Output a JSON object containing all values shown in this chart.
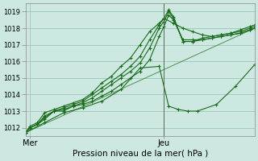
{
  "xlabel": "Pression niveau de la mer( hPa )",
  "background_color": "#cce8e0",
  "grid_color": "#90c0b0",
  "line_color": "#1a6b1a",
  "marker": "+",
  "ylim": [
    1011.5,
    1019.5
  ],
  "yticks": [
    1012,
    1013,
    1014,
    1015,
    1016,
    1017,
    1018,
    1019
  ],
  "xlim": [
    0,
    96
  ],
  "xtick_labels": [
    "Mer",
    "Jeu"
  ],
  "xtick_positions": [
    2,
    58
  ],
  "vline_x": 58,
  "series": [
    {
      "x": [
        0,
        2,
        5,
        8,
        12,
        16,
        20,
        24,
        28,
        32,
        36,
        40,
        44,
        48,
        52,
        56,
        58,
        60,
        62,
        66,
        70,
        74,
        78,
        82,
        86,
        90,
        94,
        96
      ],
      "y": [
        1011.7,
        1012.0,
        1012.2,
        1012.5,
        1013.0,
        1013.0,
        1013.3,
        1013.4,
        1013.6,
        1013.9,
        1014.2,
        1014.6,
        1015.0,
        1015.4,
        1016.1,
        1017.5,
        1018.1,
        1018.8,
        1018.5,
        1017.3,
        1017.3,
        1017.3,
        1017.4,
        1017.5,
        1017.6,
        1017.7,
        1017.9,
        1018.0
      ],
      "markers": true
    },
    {
      "x": [
        0,
        2,
        5,
        8,
        12,
        16,
        20,
        24,
        28,
        32,
        36,
        40,
        44,
        48,
        52,
        56,
        58,
        60,
        62,
        66,
        70,
        74,
        78,
        82,
        86,
        90,
        94,
        96
      ],
      "y": [
        1011.7,
        1012.0,
        1012.2,
        1012.6,
        1013.0,
        1013.1,
        1013.3,
        1013.5,
        1013.8,
        1014.2,
        1014.6,
        1015.0,
        1015.4,
        1015.9,
        1016.8,
        1018.0,
        1018.4,
        1019.0,
        1018.6,
        1017.2,
        1017.2,
        1017.3,
        1017.4,
        1017.5,
        1017.6,
        1017.7,
        1017.9,
        1018.0
      ],
      "markers": true
    },
    {
      "x": [
        0,
        2,
        5,
        8,
        12,
        16,
        20,
        24,
        28,
        32,
        36,
        40,
        44,
        48,
        52,
        56,
        58,
        60,
        62,
        66,
        70,
        74,
        78,
        82,
        86,
        90,
        94,
        96
      ],
      "y": [
        1011.7,
        1012.0,
        1012.2,
        1012.7,
        1013.0,
        1013.2,
        1013.4,
        1013.6,
        1014.0,
        1014.4,
        1014.8,
        1015.2,
        1015.7,
        1016.3,
        1017.3,
        1018.2,
        1018.6,
        1019.1,
        1018.7,
        1017.2,
        1017.2,
        1017.4,
        1017.5,
        1017.6,
        1017.7,
        1017.8,
        1018.0,
        1018.1
      ],
      "markers": true
    },
    {
      "x": [
        0,
        2,
        5,
        8,
        12,
        16,
        20,
        24,
        28,
        32,
        36,
        40,
        44,
        48,
        52,
        56,
        58,
        62,
        66,
        70,
        74,
        78,
        82,
        86,
        90,
        94,
        96
      ],
      "y": [
        1011.7,
        1012.1,
        1012.3,
        1012.9,
        1013.1,
        1013.3,
        1013.5,
        1013.7,
        1014.1,
        1014.7,
        1015.1,
        1015.7,
        1016.2,
        1017.0,
        1017.8,
        1018.3,
        1018.6,
        1018.3,
        1018.0,
        1017.8,
        1017.6,
        1017.5,
        1017.6,
        1017.7,
        1017.9,
        1018.1,
        1018.2
      ],
      "markers": true
    },
    {
      "x": [
        0,
        8,
        16,
        24,
        32,
        40,
        48,
        56,
        60,
        64,
        68,
        72,
        80,
        88,
        96
      ],
      "y": [
        1011.7,
        1012.3,
        1012.9,
        1013.2,
        1013.6,
        1014.3,
        1015.6,
        1015.7,
        1013.3,
        1013.1,
        1013.0,
        1013.0,
        1013.4,
        1014.5,
        1015.8
      ],
      "markers": true
    },
    {
      "x": [
        0,
        96
      ],
      "y": [
        1011.7,
        1018.0
      ],
      "markers": false
    }
  ]
}
